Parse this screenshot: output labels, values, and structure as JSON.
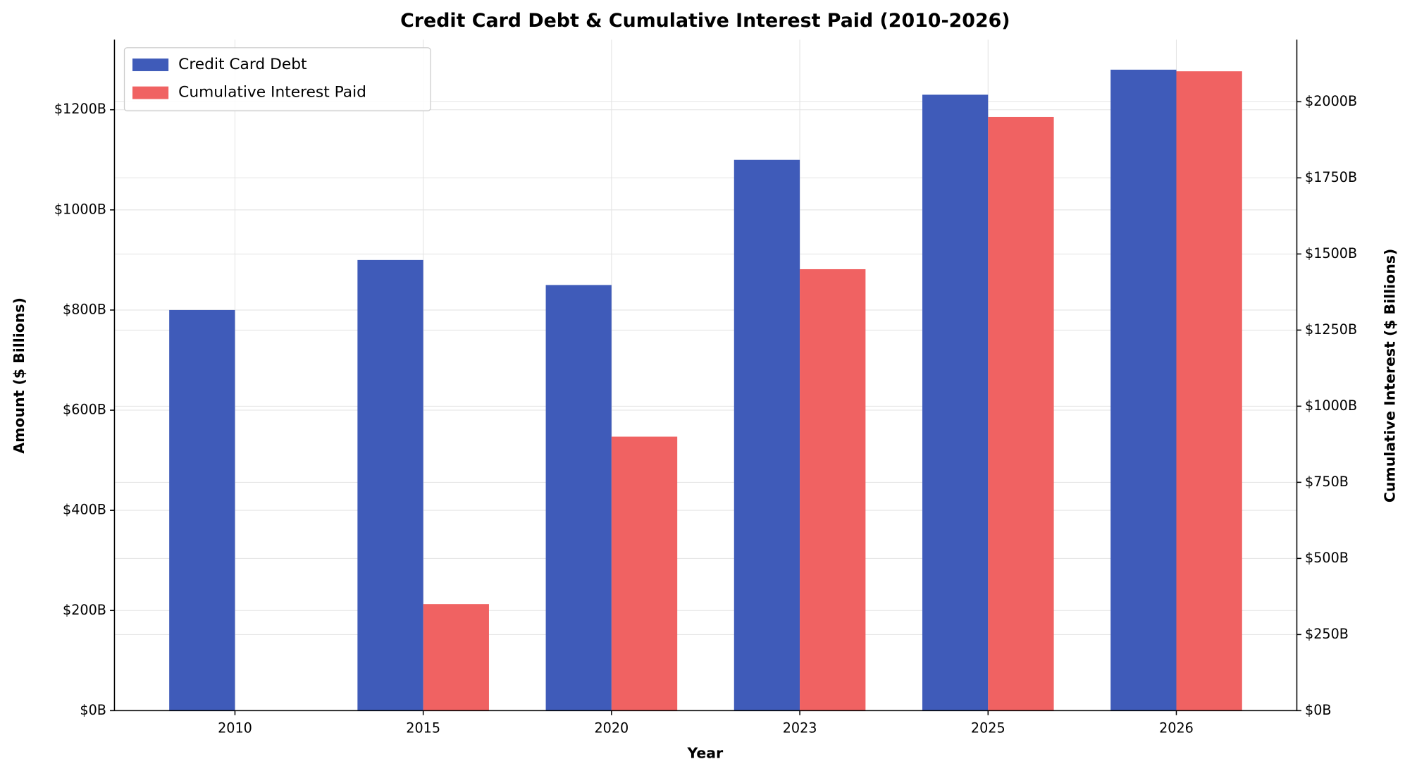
{
  "chart_data": {
    "type": "bar",
    "title": "Credit Card Debt & Cumulative Interest Paid (2010-2026)",
    "x_label": "Year",
    "y_label": "Amount ($ Billions)",
    "y2_label": "Cumulative Interest ($ Billions)",
    "categories": [
      "2010",
      "2015",
      "2020",
      "2023",
      "2025",
      "2026"
    ],
    "series": [
      {
        "name": "Credit Card Debt",
        "color": "#3f5bb9",
        "values": [
          800,
          900,
          850,
          1100,
          1230,
          1280
        ]
      },
      {
        "name": "Cumulative Interest Paid",
        "color": "#f06262",
        "axis": "y2",
        "values": [
          0,
          350,
          900,
          1450,
          1950,
          2100
        ]
      }
    ],
    "ylim": [
      0,
      1340
    ],
    "yticks": [
      {
        "value": 0,
        "label": "$0B"
      },
      {
        "value": 200,
        "label": "$200B"
      },
      {
        "value": 400,
        "label": "$400B"
      },
      {
        "value": 600,
        "label": "$600B"
      },
      {
        "value": 800,
        "label": "$800B"
      },
      {
        "value": 1000,
        "label": "$1000B"
      },
      {
        "value": 1200,
        "label": "$1200B"
      }
    ],
    "y2lim": [
      0,
      2204
    ],
    "y2ticks": [
      {
        "value": 0,
        "label": "$0B"
      },
      {
        "value": 250,
        "label": "$250B"
      },
      {
        "value": 500,
        "label": "$500B"
      },
      {
        "value": 750,
        "label": "$750B"
      },
      {
        "value": 1000,
        "label": "$1000B"
      },
      {
        "value": 1250,
        "label": "$1250B"
      },
      {
        "value": 1500,
        "label": "$1500B"
      },
      {
        "value": 1750,
        "label": "$1750B"
      },
      {
        "value": 2000,
        "label": "$2000B"
      }
    ],
    "grid": true,
    "legend": "upper left"
  }
}
